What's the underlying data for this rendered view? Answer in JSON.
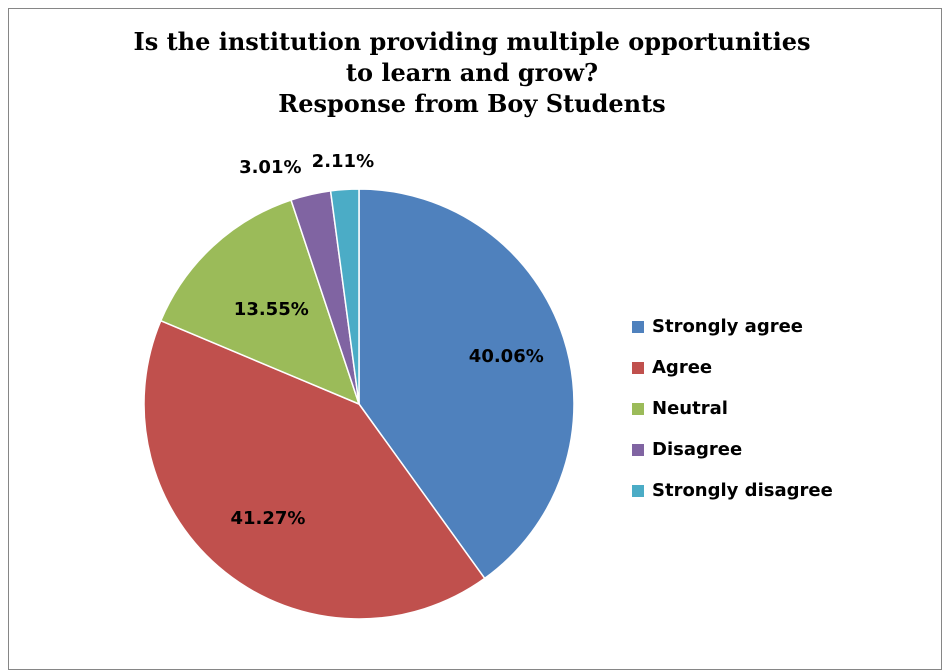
{
  "chart_data": {
    "type": "pie",
    "title_lines": [
      "Is the institution providing multiple opportunities",
      "to learn and grow?",
      "Response from Boy Students"
    ],
    "categories": [
      "Strongly agree",
      "Agree",
      "Neutral",
      "Disagree",
      "Strongly disagree"
    ],
    "values": [
      40.06,
      41.27,
      13.55,
      3.01,
      2.11
    ],
    "data_labels": [
      "40.06%",
      "41.27%",
      "13.55%",
      "3.01%",
      "2.11%"
    ],
    "colors": [
      "#4f81bd",
      "#c0504d",
      "#9bbb59",
      "#8064a2",
      "#4bacc6"
    ],
    "start_angle_deg": 0,
    "direction": "clockwise",
    "legend_position": "right"
  }
}
